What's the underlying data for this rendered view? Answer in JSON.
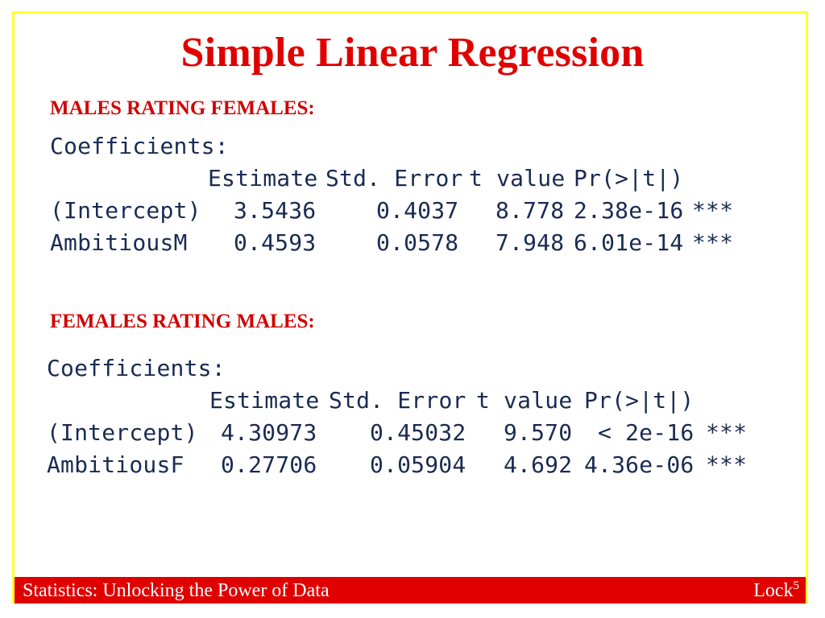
{
  "title": "Simple Linear Regression",
  "section1": {
    "heading": "MALES RATING FEMALES:",
    "coef_label": "Coefficients:",
    "columns": [
      "Estimate",
      "Std. Error",
      "t value",
      "Pr(>|t|)"
    ],
    "rows": [
      {
        "term": "(Intercept)",
        "estimate": "3.5436",
        "std_error": "0.4037",
        "t_value": "8.778",
        "p_value": "2.38e-16",
        "signif": "***"
      },
      {
        "term": "AmbitiousM",
        "estimate": "0.4593",
        "std_error": "0.0578",
        "t_value": "7.948",
        "p_value": "6.01e-14",
        "signif": "***"
      }
    ]
  },
  "section2": {
    "heading": "FEMALES RATING MALES:",
    "coef_label": "Coefficients:",
    "columns": [
      "Estimate",
      "Std. Error",
      "t value",
      "Pr(>|t|)"
    ],
    "rows": [
      {
        "term": "(Intercept)",
        "estimate": "4.30973",
        "std_error": "0.45032",
        "t_value": "9.570",
        "p_value": "< 2e-16",
        "signif": "***"
      },
      {
        "term": "AmbitiousF",
        "estimate": "0.27706",
        "std_error": "0.05904",
        "t_value": "4.692",
        "p_value": "4.36e-06",
        "signif": "***"
      }
    ]
  },
  "footer": {
    "left": "Statistics: Unlocking the Power of Data",
    "right": "Lock",
    "right_sup": "5"
  },
  "colors": {
    "title": "#e00000",
    "heading": "#d00000",
    "output_text": "#1a2a52",
    "frame_border": "#ffff33",
    "footer_bg": "#e00000"
  }
}
